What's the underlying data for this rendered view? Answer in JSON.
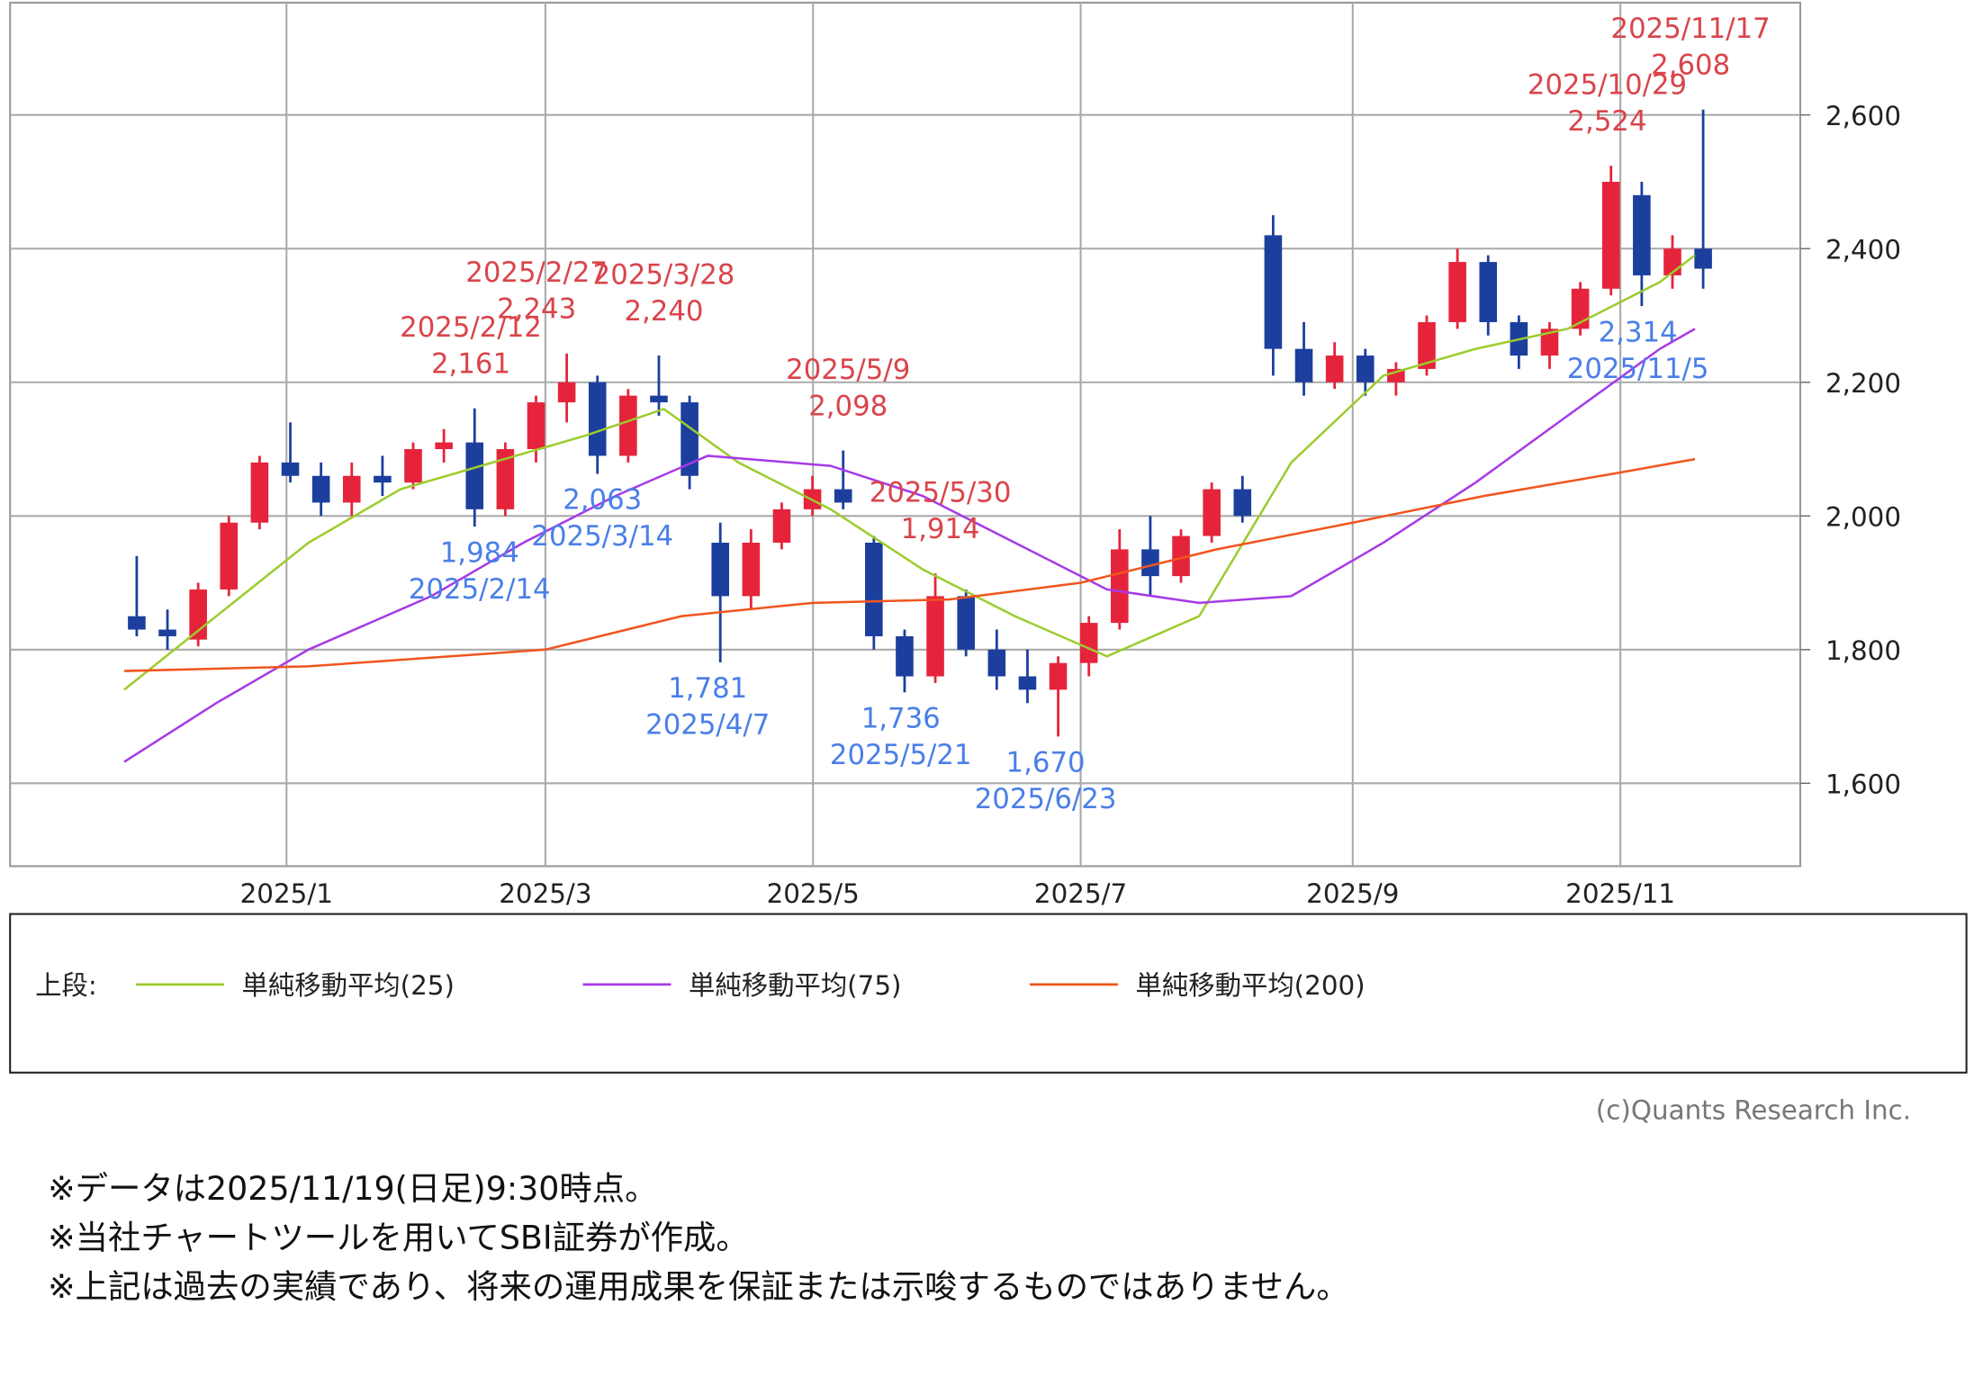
{
  "chart_data": {
    "type": "candlestick",
    "x": [
      "2024/11/25",
      "2024/12/2",
      "2024/12/9",
      "2024/12/16",
      "2024/12/23",
      "2024/12/30",
      "2025/1/6",
      "2025/1/13",
      "2025/1/20",
      "2025/1/27",
      "2025/2/3",
      "2025/2/10",
      "2025/2/17",
      "2025/2/24",
      "2025/3/3",
      "2025/3/10",
      "2025/3/17",
      "2025/3/24",
      "2025/3/31",
      "2025/4/7",
      "2025/4/14",
      "2025/4/21",
      "2025/4/28",
      "2025/5/5",
      "2025/5/12",
      "2025/5/19",
      "2025/5/26",
      "2025/6/2",
      "2025/6/9",
      "2025/6/16",
      "2025/6/23",
      "2025/6/30",
      "2025/7/7",
      "2025/7/14",
      "2025/7/21",
      "2025/7/28",
      "2025/8/4",
      "2025/8/11",
      "2025/8/18",
      "2025/8/25",
      "2025/9/1",
      "2025/9/8",
      "2025/9/15",
      "2025/9/22",
      "2025/9/29",
      "2025/10/6",
      "2025/10/13",
      "2025/10/20",
      "2025/10/27",
      "2025/11/3",
      "2025/11/10",
      "2025/11/17"
    ],
    "open": [
      1850,
      1830,
      1815,
      1890,
      1990,
      2080,
      2060,
      2020,
      2060,
      2050,
      2100,
      2110,
      2010,
      2100,
      2170,
      2200,
      2090,
      2180,
      2170,
      1960,
      1880,
      1960,
      2010,
      2040,
      1960,
      1820,
      1760,
      1880,
      1800,
      1760,
      1740,
      1780,
      1840,
      1950,
      1910,
      1970,
      2040,
      2420,
      2250,
      2200,
      2240,
      2200,
      2220,
      2290,
      2380,
      2290,
      2240,
      2280,
      2340,
      2480,
      2360,
      2400
    ],
    "high": [
      1940,
      1860,
      1900,
      2000,
      2090,
      2140,
      2080,
      2080,
      2090,
      2110,
      2130,
      2161,
      2110,
      2180,
      2243,
      2210,
      2190,
      2240,
      2180,
      1990,
      1980,
      2020,
      2060,
      2098,
      1970,
      1830,
      1914,
      1890,
      1830,
      1800,
      1790,
      1850,
      1980,
      2000,
      1980,
      2050,
      2060,
      2450,
      2290,
      2260,
      2250,
      2230,
      2300,
      2400,
      2390,
      2300,
      2290,
      2350,
      2524,
      2500,
      2420,
      2608
    ],
    "low": [
      1820,
      1800,
      1805,
      1880,
      1980,
      2050,
      2000,
      2000,
      2030,
      2040,
      2080,
      1984,
      2000,
      2080,
      2140,
      2063,
      2080,
      2150,
      2040,
      1781,
      1860,
      1950,
      2000,
      2010,
      1800,
      1736,
      1750,
      1790,
      1740,
      1720,
      1670,
      1760,
      1830,
      1880,
      1900,
      1960,
      1990,
      2210,
      2180,
      2190,
      2180,
      2180,
      2210,
      2280,
      2270,
      2220,
      2220,
      2270,
      2330,
      2314,
      2340,
      2340
    ],
    "close": [
      1830,
      1820,
      1890,
      1990,
      2080,
      2060,
      2020,
      2060,
      2050,
      2100,
      2110,
      2010,
      2100,
      2170,
      2200,
      2090,
      2180,
      2170,
      2060,
      1880,
      1960,
      2010,
      2040,
      2020,
      1820,
      1760,
      1880,
      1800,
      1760,
      1740,
      1780,
      1840,
      1950,
      1910,
      1970,
      2040,
      2000,
      2250,
      2200,
      2240,
      2200,
      2220,
      2290,
      2380,
      2290,
      2240,
      2280,
      2340,
      2500,
      2360,
      2400,
      2370
    ],
    "up_color": "#e5243b",
    "down_color": "#1c3f9e",
    "series": [
      {
        "name": "単純移動平均(25)",
        "color": "#9ccc2c",
        "x": [
          "2024/11/25",
          "2024/12/16",
          "2025/1/6",
          "2025/1/27",
          "2025/2/17",
          "2025/3/10",
          "2025/3/28",
          "2025/4/14",
          "2025/5/5",
          "2025/5/26",
          "2025/6/16",
          "2025/7/7",
          "2025/7/28",
          "2025/8/18",
          "2025/9/8",
          "2025/9/29",
          "2025/10/20",
          "2025/11/10",
          "2025/11/18"
        ],
        "values": [
          1740,
          1850,
          1960,
          2040,
          2080,
          2120,
          2160,
          2080,
          2010,
          1920,
          1850,
          1790,
          1850,
          2080,
          2210,
          2250,
          2280,
          2350,
          2390
        ]
      },
      {
        "name": "単純移動平均(75)",
        "color": "#a63ae8",
        "x": [
          "2024/11/25",
          "2024/12/16",
          "2025/1/6",
          "2025/2/3",
          "2025/2/24",
          "2025/3/17",
          "2025/4/7",
          "2025/5/5",
          "2025/5/26",
          "2025/6/16",
          "2025/7/7",
          "2025/7/28",
          "2025/8/18",
          "2025/9/8",
          "2025/9/29",
          "2025/10/20",
          "2025/11/10",
          "2025/11/18"
        ],
        "values": [
          1632,
          1720,
          1800,
          1880,
          1960,
          2030,
          2090,
          2075,
          2030,
          1960,
          1890,
          1870,
          1880,
          1960,
          2050,
          2150,
          2250,
          2280
        ]
      },
      {
        "name": "単純移動平均(200)",
        "color": "#f0551e",
        "x": [
          "2024/11/25",
          "2025/1/6",
          "2025/3/1",
          "2025/4/1",
          "2025/5/1",
          "2025/6/1",
          "2025/7/1",
          "2025/8/1",
          "2025/9/1",
          "2025/10/1",
          "2025/11/1",
          "2025/11/18"
        ],
        "values": [
          1768,
          1775,
          1800,
          1850,
          1870,
          1875,
          1900,
          1950,
          1990,
          2030,
          2065,
          2085
        ]
      }
    ],
    "annotations": [
      {
        "date": "2025/2/12",
        "value": 2161,
        "label": "2,161",
        "color": "#d9454b"
      },
      {
        "date": "2025/2/27",
        "value": 2243,
        "label": "2,243",
        "color": "#d9454b"
      },
      {
        "date": "2025/3/28",
        "value": 2240,
        "label": "2,240",
        "color": "#d9454b"
      },
      {
        "date": "2025/5/9",
        "value": 2098,
        "label": "2,098",
        "color": "#d9454b"
      },
      {
        "date": "2025/5/30",
        "value": 1914,
        "label": "1,914",
        "color": "#d9454b"
      },
      {
        "date": "2025/10/29",
        "value": 2524,
        "label": "2,524",
        "color": "#d9454b"
      },
      {
        "date": "2025/11/17",
        "value": 2608,
        "label": "2,608",
        "color": "#d9454b"
      },
      {
        "date": "2025/2/14",
        "value": 1984,
        "label": "1,984",
        "color": "#4a7fe8"
      },
      {
        "date": "2025/3/14",
        "value": 2063,
        "label": "2,063",
        "color": "#4a7fe8"
      },
      {
        "date": "2025/4/7",
        "value": 1781,
        "label": "1,781",
        "color": "#4a7fe8"
      },
      {
        "date": "2025/5/21",
        "value": 1736,
        "label": "1,736",
        "color": "#4a7fe8"
      },
      {
        "date": "2025/6/23",
        "value": 1670,
        "label": "1,670",
        "color": "#4a7fe8"
      },
      {
        "date": "2025/11/5",
        "value": 2314,
        "label": "2,314",
        "color": "#4a7fe8"
      }
    ],
    "xlim": [
      "2024/10/30",
      "2025/12/12"
    ],
    "xticks": [
      "2025/1",
      "2025/3",
      "2025/5",
      "2025/7",
      "2025/9",
      "2025/11"
    ],
    "ylim": [
      1476,
      2768
    ],
    "yticks": [
      {
        "value": 1600,
        "label": "1,600"
      },
      {
        "value": 1800,
        "label": "1,800"
      },
      {
        "value": 2000,
        "label": "2,000"
      },
      {
        "value": 2200,
        "label": "2,200"
      },
      {
        "value": 2400,
        "label": "2,400"
      },
      {
        "value": 2600,
        "label": "2,600"
      }
    ],
    "grid": true,
    "legend_prefix": "上段:"
  },
  "credit": "(c)Quants Research Inc.",
  "notes": [
    "※データは2025/11/19(日足)9:30時点。",
    "※当社チャートツールを用いてSBI証券が作成。",
    "※上記は過去の実績であり、将来の運用成果を保証または示唆するものではありません。"
  ]
}
